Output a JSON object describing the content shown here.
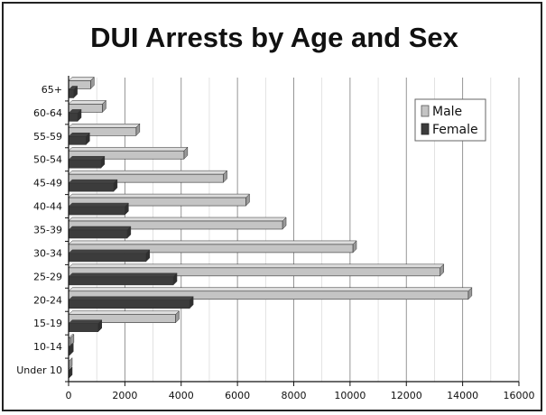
{
  "chart_data": {
    "type": "bar",
    "orientation": "horizontal",
    "title": "DUI Arrests by Age and Sex",
    "xlabel": "",
    "ylabel": "",
    "categories": [
      "65+",
      "60-64",
      "55-59",
      "50-54",
      "45-49",
      "40-44",
      "35-39",
      "30-34",
      "25-29",
      "20-24",
      "15-19",
      "10-14",
      "Under 10"
    ],
    "series": [
      {
        "name": "Male",
        "color": "#c4c4c4",
        "values": [
          780,
          1200,
          2400,
          4100,
          5500,
          6300,
          7600,
          10100,
          13200,
          14200,
          3800,
          60,
          0
        ]
      },
      {
        "name": "Female",
        "color": "#3c3c3c",
        "values": [
          180,
          320,
          620,
          1150,
          1600,
          2000,
          2080,
          2750,
          3720,
          4300,
          1050,
          40,
          0
        ]
      }
    ],
    "xlim": [
      0,
      16000
    ],
    "xticks": [
      "0",
      "2000",
      "4000",
      "6000",
      "8000",
      "10000",
      "12000",
      "14000",
      "16000"
    ],
    "grid": true,
    "legend_position": "top-right",
    "style": "3d"
  }
}
